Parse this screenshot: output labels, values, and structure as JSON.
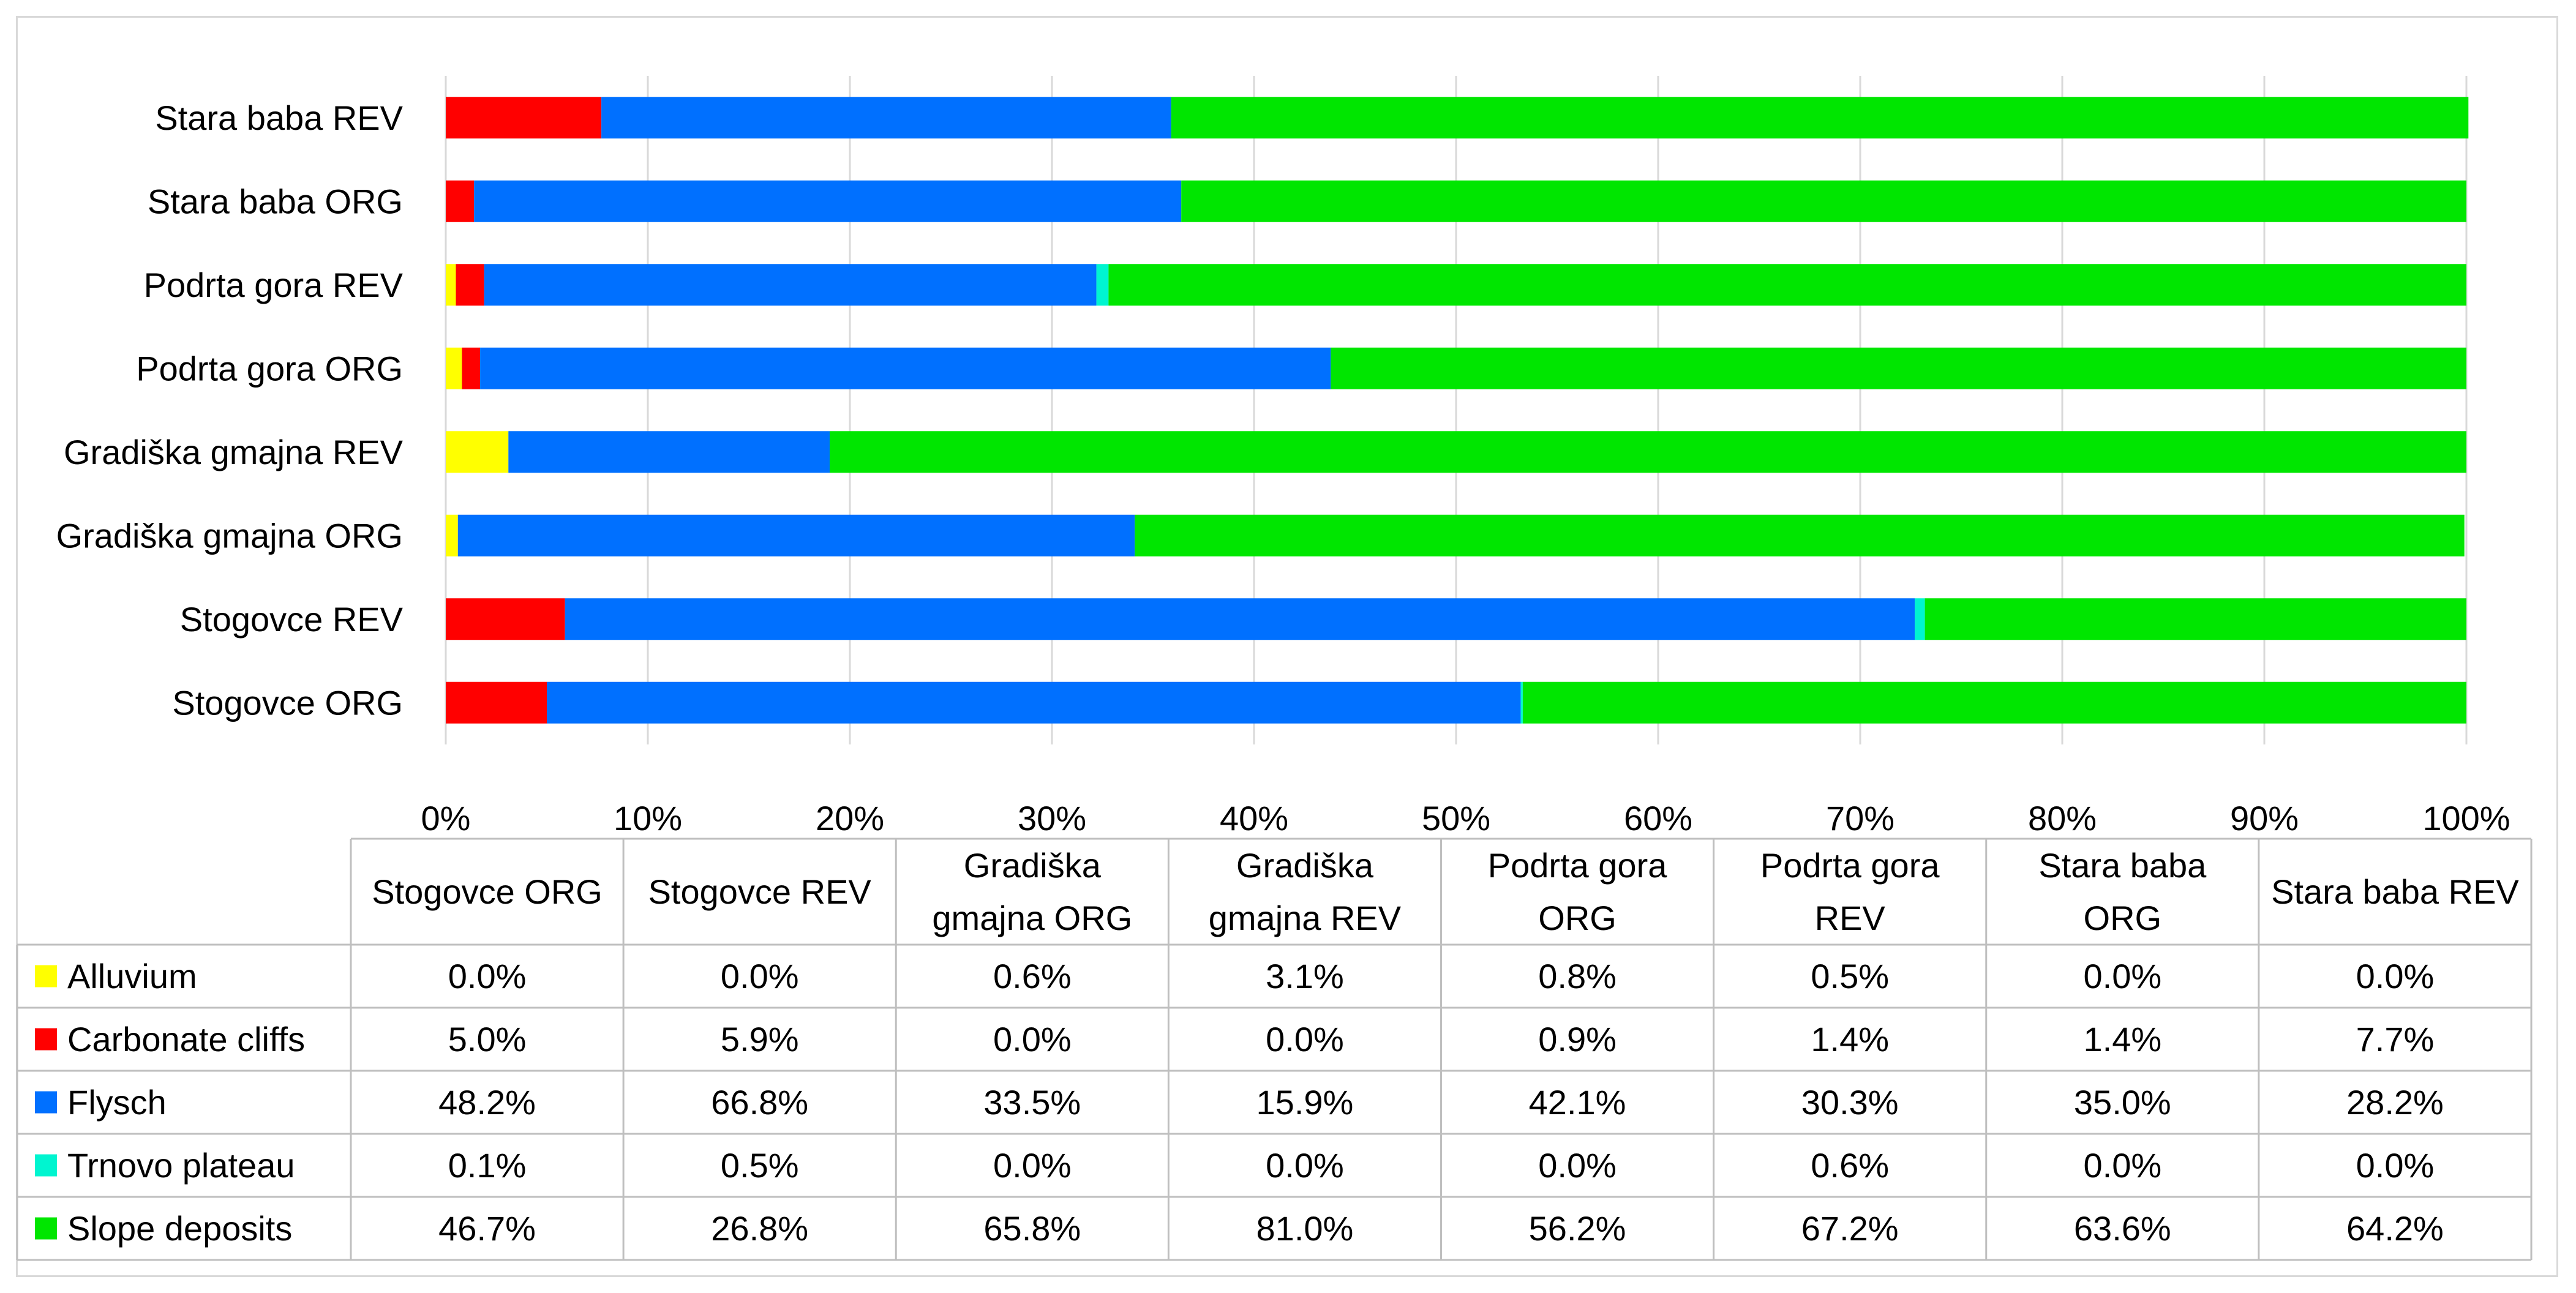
{
  "chart_data": {
    "type": "bar",
    "orientation": "horizontal",
    "stacked": "percent",
    "title": "",
    "xlabel": "",
    "ylabel": "",
    "xlim": [
      0,
      100
    ],
    "grid": true,
    "legend": "data-table-left",
    "categories": [
      "Stogovce ORG",
      "Stogovce REV",
      "Gradiška gmajna ORG",
      "Gradiška gmajna REV",
      "Podrta gora ORG",
      "Podrta gora REV",
      "Stara baba ORG",
      "Stara baba REV"
    ],
    "table_headers": [
      [
        "Stogovce ORG"
      ],
      [
        "Stogovce REV"
      ],
      [
        "Gradiška",
        "gmajna ORG"
      ],
      [
        "Gradiška",
        "gmajna REV"
      ],
      [
        "Podrta gora",
        "ORG"
      ],
      [
        "Podrta gora",
        "REV"
      ],
      [
        "Stara baba",
        "ORG"
      ],
      [
        "Stara baba REV"
      ]
    ],
    "x_ticks": [
      "0%",
      "10%",
      "20%",
      "30%",
      "40%",
      "50%",
      "60%",
      "70%",
      "80%",
      "90%",
      "100%"
    ],
    "series": [
      {
        "name": "Alluvium",
        "color": "#ffff00",
        "values": [
          0.0,
          0.0,
          0.6,
          3.1,
          0.8,
          0.5,
          0.0,
          0.0
        ],
        "labels": [
          "0.0%",
          "0.0%",
          "0.6%",
          "3.1%",
          "0.8%",
          "0.5%",
          "0.0%",
          "0.0%"
        ]
      },
      {
        "name": "Carbonate cliffs",
        "color": "#ff0000",
        "values": [
          5.0,
          5.9,
          0.0,
          0.0,
          0.9,
          1.4,
          1.4,
          7.7
        ],
        "labels": [
          "5.0%",
          "5.9%",
          "0.0%",
          "0.0%",
          "0.9%",
          "1.4%",
          "1.4%",
          "7.7%"
        ]
      },
      {
        "name": "Flysch",
        "color": "#0070ff",
        "values": [
          48.2,
          66.8,
          33.5,
          15.9,
          42.1,
          30.3,
          35.0,
          28.2
        ],
        "labels": [
          "48.2%",
          "66.8%",
          "33.5%",
          "15.9%",
          "42.1%",
          "30.3%",
          "35.0%",
          "28.2%"
        ]
      },
      {
        "name": "Trnovo plateau",
        "color": "#00f5d0",
        "values": [
          0.1,
          0.5,
          0.0,
          0.0,
          0.0,
          0.6,
          0.0,
          0.0
        ],
        "labels": [
          "0.1%",
          "0.5%",
          "0.0%",
          "0.0%",
          "0.0%",
          "0.6%",
          "0.0%",
          "0.0%"
        ]
      },
      {
        "name": "Slope deposits",
        "color": "#00e600",
        "values": [
          46.7,
          26.8,
          65.8,
          81.0,
          56.2,
          67.2,
          63.6,
          64.2
        ],
        "labels": [
          "46.7%",
          "26.8%",
          "65.8%",
          "81.0%",
          "56.2%",
          "67.2%",
          "63.6%",
          "64.2%"
        ]
      }
    ]
  }
}
